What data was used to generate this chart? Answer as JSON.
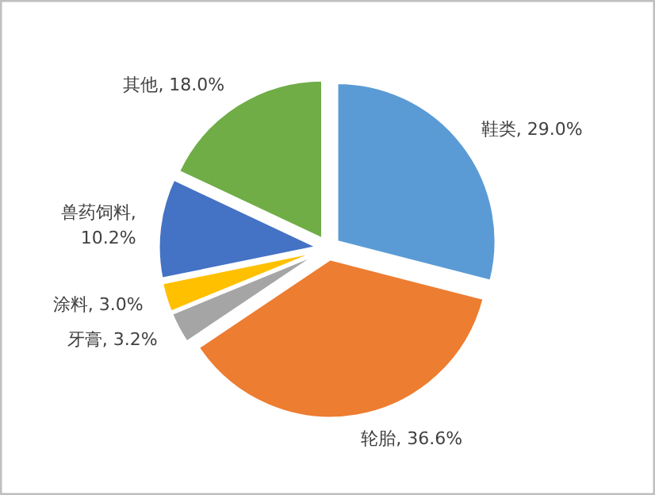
{
  "chart_data": {
    "type": "pie",
    "categories": [
      "鞋类",
      "轮胎",
      "牙膏",
      "涂料",
      "兽药饲料",
      "其他"
    ],
    "values": [
      29.0,
      36.6,
      3.2,
      3.0,
      10.2,
      18.0
    ],
    "colors": [
      "#5b9bd5",
      "#ed7d31",
      "#a5a5a5",
      "#ffc000",
      "#4472c4",
      "#70ad47"
    ],
    "value_labels": [
      ", 29.0%",
      ", 36.6%",
      ", 3.2%",
      ", 3.0%",
      ", 10.2%",
      ", 18.0%"
    ]
  }
}
